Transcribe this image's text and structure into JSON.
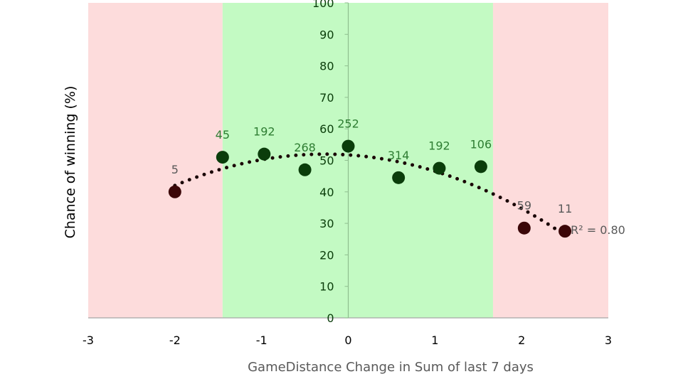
{
  "chart_data": {
    "type": "scatter",
    "title": "",
    "xlabel": "GameDistance Change in Sum of last 7 days",
    "ylabel": "Chance of winning (%)",
    "xlim": [
      -3,
      3
    ],
    "ylim": [
      0,
      100
    ],
    "x_ticks": [
      "-3",
      "-2",
      "-1",
      "0",
      "1",
      "2",
      "3"
    ],
    "y_ticks": [
      "0",
      "10",
      "20",
      "30",
      "40",
      "50",
      "60",
      "70",
      "80",
      "90",
      "100"
    ],
    "grid": false,
    "bands": [
      {
        "x0": -3,
        "x1": -1.45,
        "color": "#fddcdc",
        "zone": "red"
      },
      {
        "x0": -1.45,
        "x1": 1.67,
        "color": "#c3fac3",
        "zone": "green"
      },
      {
        "x0": 1.67,
        "x1": 3,
        "color": "#fddcdc",
        "zone": "red"
      }
    ],
    "points": [
      {
        "x": -2.0,
        "y": 40,
        "label": "5",
        "zone": "red"
      },
      {
        "x": -1.45,
        "y": 51,
        "label": "45",
        "zone": "green"
      },
      {
        "x": -0.97,
        "y": 52,
        "label": "192",
        "zone": "green"
      },
      {
        "x": -0.5,
        "y": 47,
        "label": "268",
        "zone": "green"
      },
      {
        "x": 0.0,
        "y": 54.5,
        "label": "252",
        "zone": "green"
      },
      {
        "x": 0.58,
        "y": 44.5,
        "label": "314",
        "zone": "green"
      },
      {
        "x": 1.05,
        "y": 47.5,
        "label": "192",
        "zone": "green"
      },
      {
        "x": 1.53,
        "y": 48,
        "label": "106",
        "zone": "green"
      },
      {
        "x": 2.03,
        "y": 28.5,
        "label": "59",
        "zone": "red"
      },
      {
        "x": 2.5,
        "y": 27.5,
        "label": "11",
        "zone": "red"
      }
    ],
    "trendline": {
      "type": "polynomial",
      "order": 2,
      "style": "dotted",
      "r_squared_text": "R² = 0.80"
    },
    "colors": {
      "green_point": "#0b3d0b",
      "red_point": "#3b0708",
      "trendline": "#1a0505",
      "axis": "#a6a6a6"
    }
  }
}
